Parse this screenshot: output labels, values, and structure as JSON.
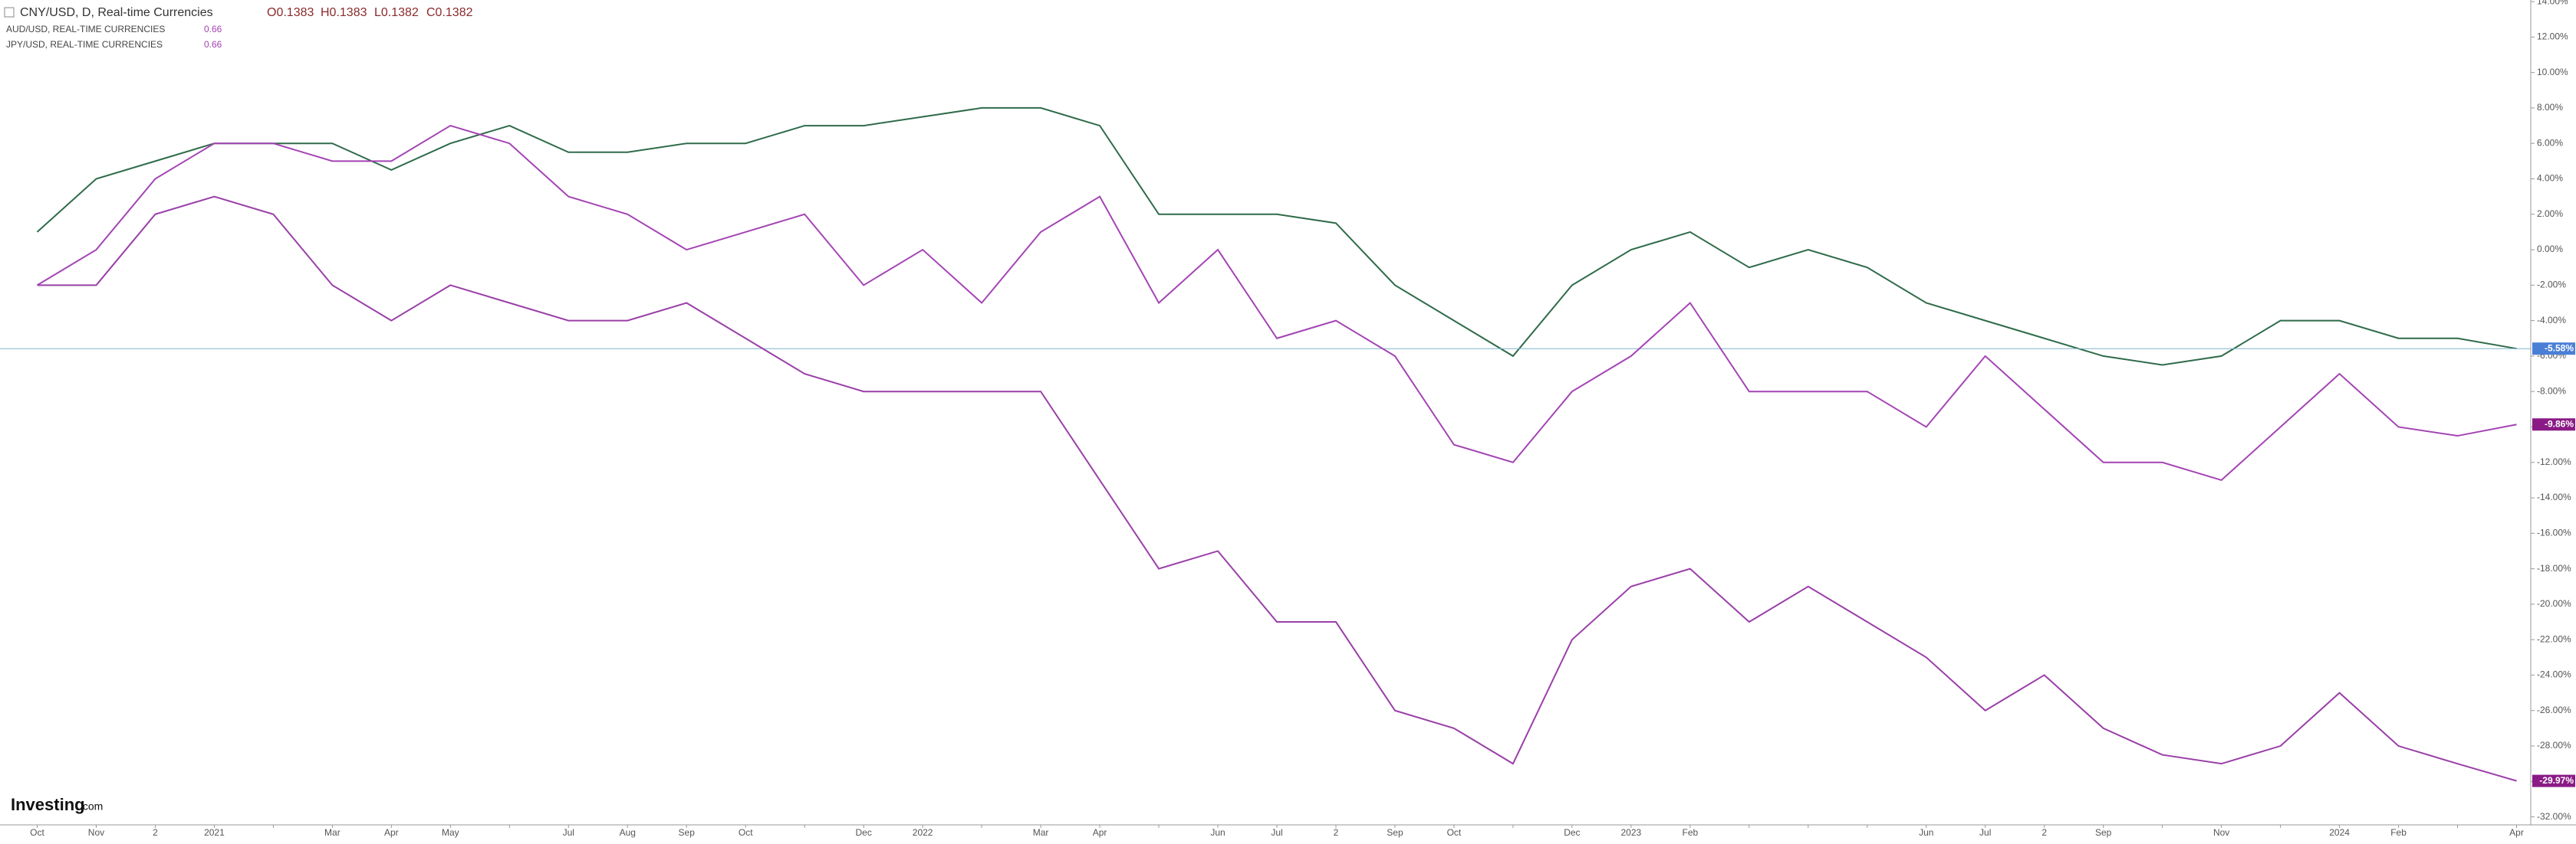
{
  "chart_data": {
    "type": "line",
    "watermark": {
      "brand": "Investing",
      "suffix": ".com"
    },
    "categories": [
      "Oct",
      "Nov",
      "2",
      "2021",
      null,
      "Mar",
      "Apr",
      "May",
      null,
      "Jul",
      "Aug",
      "Sep",
      "Oct",
      null,
      "Dec",
      "2022",
      null,
      "Mar",
      "Apr",
      null,
      "Jun",
      "Jul",
      "2",
      "Sep",
      "Oct",
      null,
      "Dec",
      "2023",
      "Feb",
      null,
      null,
      null,
      "Jun",
      "Jul",
      "2",
      "Sep",
      null,
      "Nov",
      null,
      "2024",
      "Feb",
      null,
      "Apr"
    ],
    "series": [
      {
        "name": "CNY/USD, D, Real-time Currencies",
        "ohlc": [
          "O0.1383",
          "H0.1383",
          "L0.1382",
          "C0.1382"
        ],
        "color": "#2f6b4a",
        "label_color": "#4a7fd6",
        "last_value_label": "-5.58%",
        "values": [
          1,
          4,
          5,
          6,
          6,
          6,
          4.5,
          6,
          7,
          5.5,
          5.5,
          6,
          6,
          7,
          7,
          7.5,
          8,
          8,
          7,
          2,
          2,
          2,
          1.5,
          -2,
          -4,
          -6,
          -2,
          0,
          1,
          -1,
          0,
          -1,
          -3,
          -4,
          -5,
          -6,
          -6.5,
          -6,
          -4,
          -4,
          -5,
          -5,
          -5.58
        ]
      },
      {
        "name": "AUD/USD, REAL-TIME CURRENCIES",
        "last_price": "0.66",
        "color": "#a444b4",
        "label_color": "#8a1a86",
        "last_value_label": "-9.86%",
        "values": [
          -2,
          0,
          4,
          6,
          6,
          5,
          5,
          7,
          6,
          3,
          2,
          0,
          1,
          2,
          -2,
          0,
          -3,
          1,
          3,
          -3,
          0,
          -5,
          -4,
          -6,
          -11,
          -12,
          -8,
          -6,
          -3,
          -8,
          -8,
          -8,
          -10,
          -6,
          -9,
          -12,
          -12,
          -13,
          -10,
          -7,
          -10,
          -10.5,
          -9.86
        ]
      },
      {
        "name": "JPY/USD, REAL-TIME CURRENCIES",
        "last_price": "0.66",
        "color": "#9a3fa8",
        "label_color": "#8a1a86",
        "last_value_label": "-29.97%",
        "values": [
          -2,
          -2,
          2,
          3,
          2,
          -2,
          -4,
          -2,
          -3,
          -4,
          -4,
          -3,
          -5,
          -7,
          -8,
          -8,
          -8,
          -8,
          -13,
          -18,
          -17,
          -21,
          -21,
          -26,
          -27,
          -29,
          -22,
          -19,
          -18,
          -21,
          -19,
          -21,
          -23,
          -26,
          -24,
          -27,
          -28.5,
          -29,
          -28,
          -25,
          -28,
          -29,
          -29.97
        ]
      }
    ],
    "ylim": [
      -32.45,
      14.09
    ],
    "yticks": [
      {
        "value": 14,
        "label": "14.00%"
      },
      {
        "value": 12,
        "label": "12.00%"
      },
      {
        "value": 10,
        "label": "10.00%"
      },
      {
        "value": 8,
        "label": "8.00%"
      },
      {
        "value": 6,
        "label": "6.00%"
      },
      {
        "value": 4,
        "label": "4.00%"
      },
      {
        "value": 2,
        "label": "2.00%"
      },
      {
        "value": 0,
        "label": "0.00%"
      },
      {
        "value": -2,
        "label": "-2.00%"
      },
      {
        "value": -4,
        "label": "-4.00%"
      },
      {
        "value": -6,
        "label": "-6.00%"
      },
      {
        "value": -8,
        "label": "-8.00%"
      },
      {
        "value": -10,
        "label": "-10.00%"
      },
      {
        "value": -12,
        "label": "-12.00%"
      },
      {
        "value": -14,
        "label": "-14.00%"
      },
      {
        "value": -16,
        "label": "-16.00%"
      },
      {
        "value": -18,
        "label": "-18.00%"
      },
      {
        "value": -20,
        "label": "-20.00%"
      },
      {
        "value": -22,
        "label": "-22.00%"
      },
      {
        "value": -24,
        "label": "-24.00%"
      },
      {
        "value": -26,
        "label": "-26.00%"
      },
      {
        "value": -28,
        "label": "-28.00%"
      },
      {
        "value": -30,
        "label": "-30.00%"
      },
      {
        "value": -32,
        "label": "-32.00%"
      }
    ],
    "grid": false
  }
}
